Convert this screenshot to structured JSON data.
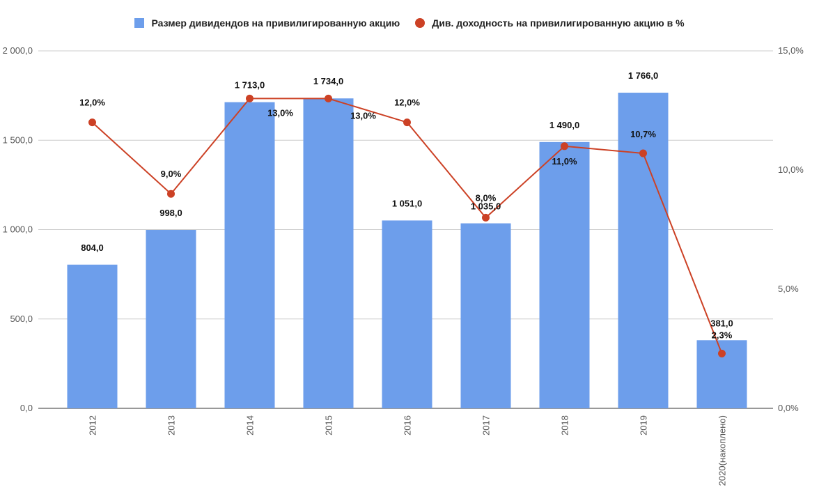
{
  "chart_data": {
    "type": "bar",
    "categories": [
      "2012",
      "2013",
      "2014",
      "2015",
      "2016",
      "2017",
      "2018",
      "2019",
      "2020(накоплено)"
    ],
    "series": [
      {
        "name": "Размер дивидендов на привилигированную акцию",
        "type": "bar",
        "axis": "left",
        "color": "#6d9eeb",
        "values": [
          804.0,
          998.0,
          1713.0,
          1734.0,
          1051.0,
          1035.0,
          1490.0,
          1766.0,
          381.0
        ],
        "labels": [
          "804,0",
          "998,0",
          "1 713,0",
          "1 734,0",
          "1 051,0",
          "1 035,0",
          "1 490,0",
          "1 766,0",
          "381,0"
        ]
      },
      {
        "name": "Див. доходность на привилигированную акцию в %",
        "type": "line",
        "axis": "right",
        "color": "#cc4125",
        "values": [
          12.0,
          9.0,
          13.0,
          13.0,
          12.0,
          8.0,
          11.0,
          10.7,
          2.3
        ],
        "labels": [
          "12,0%",
          "9,0%",
          "13,0%",
          "13,0%",
          "12,0%",
          "8,0%",
          "11,0%",
          "10,7%",
          "2,3%"
        ]
      }
    ],
    "y_left": {
      "min": 0,
      "max": 2000,
      "ticks": [
        0,
        500,
        1000,
        1500,
        2000
      ],
      "tick_labels": [
        "0,0",
        "500,0",
        "1 000,0",
        "1 500,0",
        "2 000,0"
      ]
    },
    "y_right": {
      "min": 0,
      "max": 15,
      "ticks": [
        0,
        5,
        10,
        15
      ],
      "tick_labels": [
        "0,0%",
        "5,0%",
        "10,0%",
        "15,0%"
      ]
    },
    "grid": true,
    "legend_position": "top-center",
    "title": "",
    "xlabel": "",
    "ylabel": ""
  }
}
